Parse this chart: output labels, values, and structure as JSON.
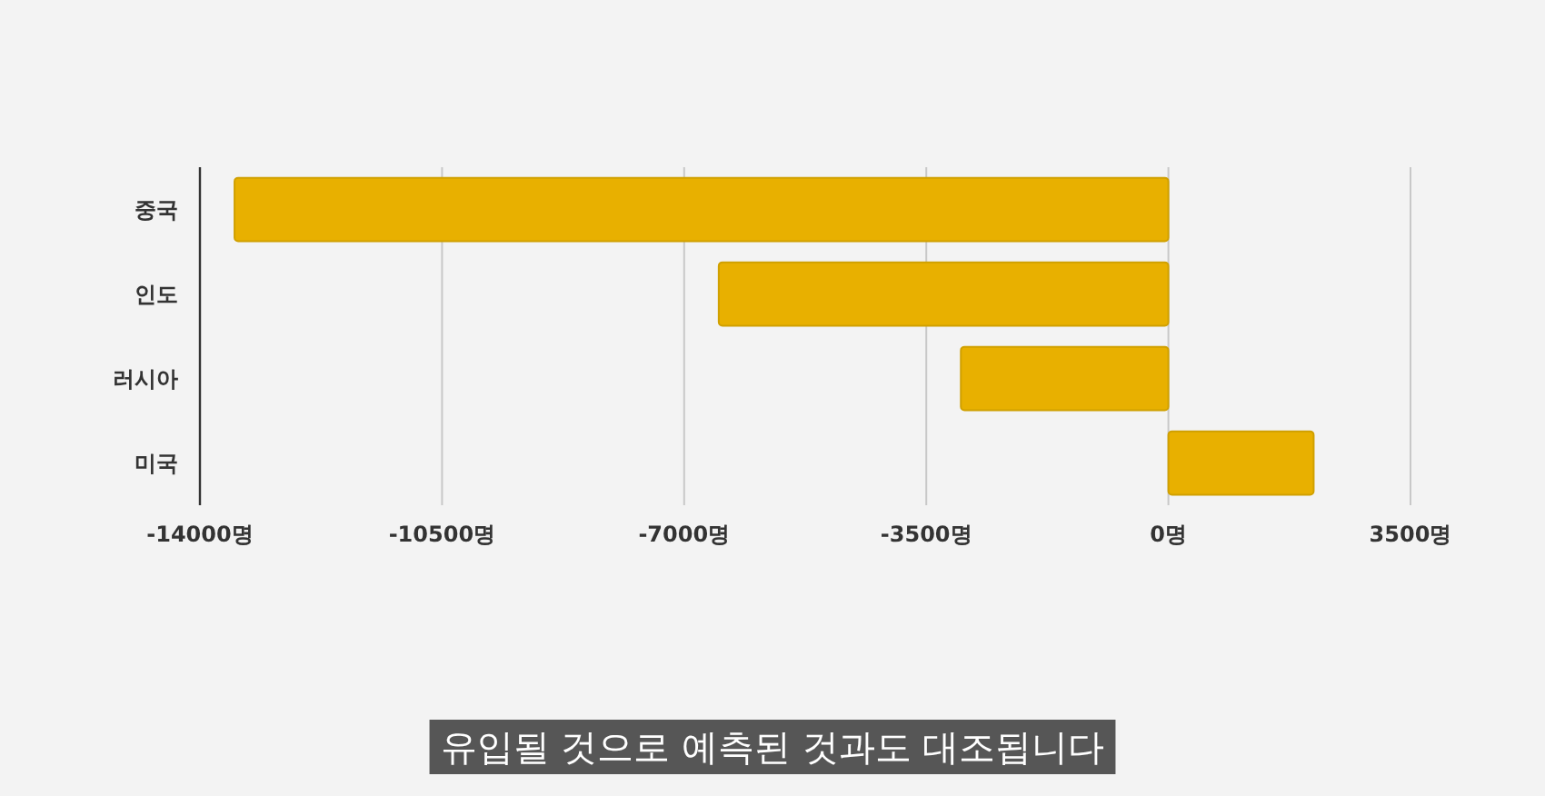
{
  "chart_data": {
    "type": "bar",
    "orientation": "horizontal",
    "categories": [
      "중국",
      "인도",
      "러시아",
      "미국"
    ],
    "values": [
      -13500,
      -6500,
      -3000,
      2100
    ],
    "color": "#e8b000",
    "xlim": [
      -14000,
      3500
    ],
    "xticks": [
      {
        "value": -14000,
        "label": "-14000명"
      },
      {
        "value": -10500,
        "label": "-10500명"
      },
      {
        "value": -7000,
        "label": "-7000명"
      },
      {
        "value": -3500,
        "label": "-3500명"
      },
      {
        "value": 0,
        "label": "0명"
      },
      {
        "value": 3500,
        "label": "3500명"
      }
    ],
    "grid": "x",
    "annotations": [
      "유입될 것으로 예측된 것과도 대조됩니다"
    ]
  }
}
